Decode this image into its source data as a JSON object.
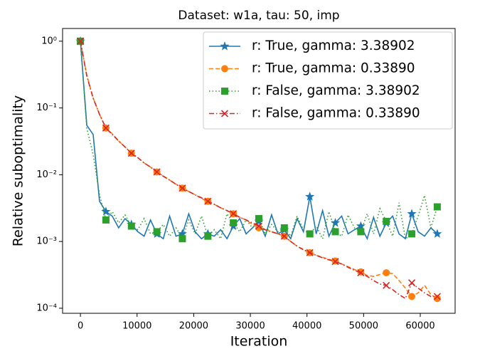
{
  "chart_data": {
    "type": "line",
    "title": "Dataset: w1a, tau: 50, imp",
    "xlabel": "Iteration",
    "ylabel": "Relative suboptimality",
    "x": [
      0,
      1125,
      2250,
      3375,
      4500,
      5625,
      6750,
      7875,
      9000,
      10125,
      11250,
      12375,
      13500,
      14625,
      15750,
      16875,
      18000,
      19125,
      20250,
      21375,
      22500,
      23625,
      24750,
      25875,
      27000,
      28125,
      29250,
      30375,
      31500,
      32625,
      33750,
      34875,
      36000,
      37125,
      38250,
      39375,
      40500,
      41625,
      42750,
      43875,
      45000,
      46125,
      47250,
      48375,
      49500,
      50625,
      51750,
      52875,
      54000,
      55125,
      56250,
      57375,
      58500,
      59625,
      60750,
      61875,
      63000
    ],
    "xlim": [
      -3150,
      66150
    ],
    "xticks": [
      0,
      10000,
      20000,
      30000,
      40000,
      50000,
      60000
    ],
    "ylog": true,
    "ylim": [
      8.4e-05,
      1.55
    ],
    "yticks": [
      {
        "value": 0.0001,
        "label": "10⁻⁴"
      },
      {
        "value": 0.001,
        "label": "10⁻³"
      },
      {
        "value": 0.01,
        "label": "10⁻²"
      },
      {
        "value": 0.1,
        "label": "10⁻¹"
      },
      {
        "value": 1,
        "label": "10⁰"
      }
    ],
    "legend": "upper right",
    "markevery": 4,
    "series": [
      {
        "name": "r: True, gamma: 3.38902",
        "color": "#1f77b4",
        "linestyle": "solid",
        "marker": "star",
        "values": [
          1,
          0.055,
          0.04,
          0.004,
          0.0028,
          0.0024,
          0.0016,
          0.0022,
          0.0018,
          0.0014,
          0.0012,
          0.0021,
          0.0013,
          0.0011,
          0.0024,
          0.0012,
          0.0013,
          0.0026,
          0.0014,
          0.0011,
          0.0013,
          0.0012,
          0.0015,
          0.0011,
          0.0017,
          0.0022,
          0.0013,
          0.0016,
          0.002,
          0.0012,
          0.0025,
          0.0013,
          0.0015,
          0.0011,
          0.0022,
          0.0014,
          0.0047,
          0.0013,
          0.0029,
          0.0012,
          0.0019,
          0.0024,
          0.0013,
          0.0015,
          0.0017,
          0.0011,
          0.0023,
          0.0012,
          0.0019,
          0.0024,
          0.0013,
          0.0011,
          0.0026,
          0.0014,
          0.0012,
          0.0016,
          0.0013
        ]
      },
      {
        "name": "r: True, gamma: 0.33890",
        "color": "#ff7f0e",
        "linestyle": "dashed",
        "marker": "circle",
        "values": [
          1,
          0.31,
          0.14,
          0.08,
          0.05,
          0.041,
          0.032,
          0.026,
          0.021,
          0.018,
          0.015,
          0.013,
          0.011,
          0.0096,
          0.0083,
          0.0072,
          0.0063,
          0.0056,
          0.005,
          0.0044,
          0.004,
          0.0036,
          0.0032,
          0.0029,
          0.0026,
          0.0023,
          0.0021,
          0.0018,
          0.0016,
          0.0015,
          0.0014,
          0.0013,
          0.0012,
          0.001,
          0.00085,
          0.00076,
          0.00068,
          0.00062,
          0.00058,
          0.00054,
          0.00051,
          0.00046,
          0.00042,
          0.00038,
          0.00035,
          0.00031,
          0.0003,
          0.00032,
          0.00034,
          0.00033,
          0.00026,
          0.0002,
          0.00015,
          0.00017,
          0.00022,
          0.00016,
          0.00014
        ]
      },
      {
        "name": "r: False, gamma: 3.38902",
        "color": "#2ca02c",
        "linestyle": "dotted",
        "marker": "square",
        "values": [
          1,
          0.05,
          0.02,
          0.005,
          0.0021,
          0.0028,
          0.0019,
          0.0025,
          0.0017,
          0.0015,
          0.0022,
          0.0013,
          0.0014,
          0.0018,
          0.0012,
          0.0016,
          0.0011,
          0.0021,
          0.0013,
          0.0024,
          0.0012,
          0.0015,
          0.0011,
          0.0026,
          0.0019,
          0.0014,
          0.0021,
          0.0016,
          0.0022,
          0.0013,
          0.0018,
          0.0014,
          0.0016,
          0.0012,
          0.0024,
          0.0015,
          0.0013,
          0.0017,
          0.0011,
          0.0028,
          0.0014,
          0.0012,
          0.0025,
          0.0016,
          0.0014,
          0.0026,
          0.0013,
          0.0031,
          0.002,
          0.0012,
          0.0038,
          0.0011,
          0.0013,
          0.0024,
          0.0049,
          0.0016,
          0.0033
        ]
      },
      {
        "name": "r: False, gamma: 0.33890",
        "color": "#d62728",
        "linestyle": "dashdot",
        "marker": "x",
        "values": [
          1,
          0.3,
          0.14,
          0.08,
          0.05,
          0.04,
          0.032,
          0.026,
          0.021,
          0.018,
          0.015,
          0.013,
          0.011,
          0.0095,
          0.0083,
          0.0072,
          0.0063,
          0.0056,
          0.005,
          0.0045,
          0.004,
          0.0036,
          0.0032,
          0.0029,
          0.0026,
          0.0023,
          0.0021,
          0.0019,
          0.0017,
          0.0015,
          0.0014,
          0.0013,
          0.0012,
          0.001,
          0.00085,
          0.00075,
          0.00068,
          0.00062,
          0.00057,
          0.00053,
          0.0005,
          0.00046,
          0.00041,
          0.00037,
          0.00034,
          0.0003,
          0.00026,
          0.00023,
          0.00022,
          0.00019,
          0.00016,
          0.00014,
          0.00024,
          0.0002,
          0.00017,
          0.00015,
          0.00015
        ]
      }
    ]
  }
}
